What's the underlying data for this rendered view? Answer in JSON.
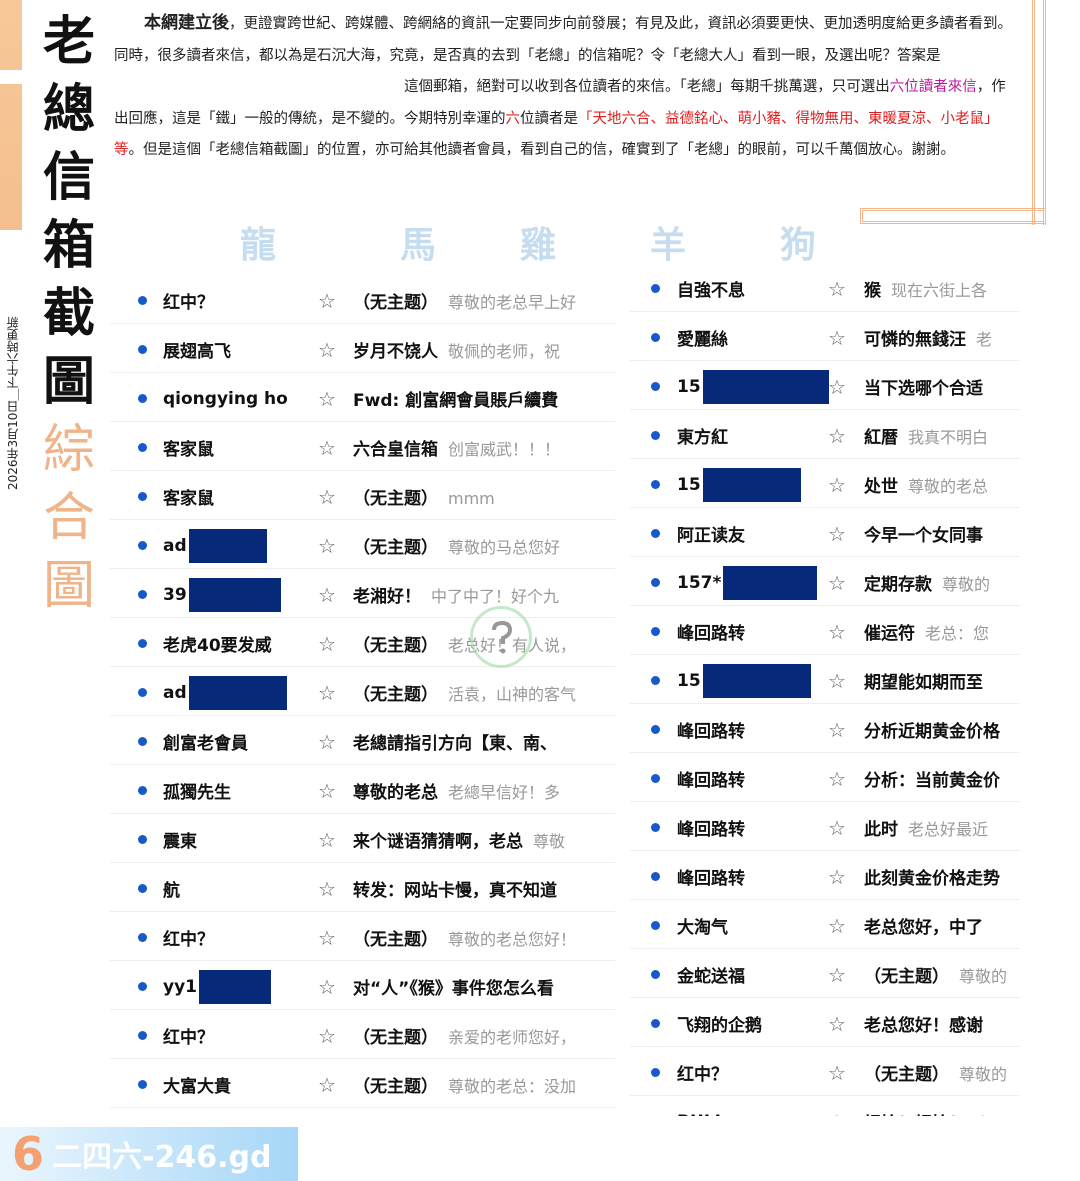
{
  "title": {
    "chars": [
      "老",
      "總",
      "信",
      "箱",
      "截",
      "圖"
    ],
    "sub_chars": [
      "綜",
      "合",
      "圖"
    ]
  },
  "date_note": "2026年3月10日＿下午六時更新",
  "intro": {
    "lead": "本網建立後",
    "p1": "，更證實跨世紀、跨媒體、跨網絡的資訊一定要同步向前發展；有見及此，資訊必須要更快、更加透明度給更多讀者看到。同時，很多讀者來信，都以為是石沉大海，究竟，是否真的去到「老總」的信箱呢？令「老總大人」看到一眼，及選出呢？答案是",
    "p2": "這個郵箱，絕對可以收到各位讀者的來信。「老總」每期千挑萬選，只可選出",
    "hl1": "六位讀者來信",
    "p3": "，作出回應，這是「鐵」一般的傳統，是不變的。今期特別幸運的",
    "hl2": "六",
    "p4": "位讀者是",
    "hl3": "「天地六合、益德銘心、萌小豬、得物無用、東暖夏涼、小老鼠」等",
    "p5": "。但是這個「老總信箱截圖」的位置，亦可給其他讀者會員，看到自己的信，確實到了「老總」的眼前，可以千萬個放心。謝謝。"
  },
  "watermark": [
    "龍",
    "馬",
    "雞",
    "羊",
    "狗"
  ],
  "colors": {
    "dot": "#1859c9",
    "redact": "#062a79",
    "magenta": "#c0189c",
    "red": "#e02020",
    "accent_orange": "#f2b68a"
  },
  "left_emails": [
    {
      "sender": "红中？",
      "subject": "（无主题）",
      "preview": "尊敬的老总早上好"
    },
    {
      "sender": "展翅高飞",
      "subject": "岁月不饶人",
      "preview": "敬佩的老师，祝"
    },
    {
      "sender": "qiongying ho",
      "subject": "Fwd: 創富網會員賬戶續費",
      "preview": ""
    },
    {
      "sender": "客家鼠",
      "subject": "六合皇信箱",
      "preview": "创富威武！！！"
    },
    {
      "sender": "客家鼠",
      "subject": "（无主题）",
      "preview": "mmm"
    },
    {
      "sender": "ad",
      "subject": "（无主题）",
      "preview": "尊敬的马总您好",
      "redact": 78
    },
    {
      "sender": "39",
      "subject": "老湘好！",
      "preview": "中了中了！好个九",
      "redact": 92
    },
    {
      "sender": "老虎40要发威",
      "subject": "（无主题）",
      "preview": "老总好！有人说，"
    },
    {
      "sender": "ad",
      "subject": "（无主题）",
      "preview": "活袁，山神的客气",
      "redact": 98
    },
    {
      "sender": "創富老會員",
      "subject": "老總請指引方向【東、南、",
      "preview": ""
    },
    {
      "sender": "孤獨先生",
      "subject": "尊敬的老总",
      "preview": "老總早信好！多"
    },
    {
      "sender": "震東",
      "subject": "来个谜语猜猜啊，老总",
      "preview": "尊敬"
    },
    {
      "sender": "航",
      "subject": "转发：网站卡慢，真不知道",
      "preview": ""
    },
    {
      "sender": "红中？",
      "subject": "（无主题）",
      "preview": "尊敬的老总您好！"
    },
    {
      "sender": "yy1",
      "subject": "对“人”《猴》事件您怎么看",
      "preview": "",
      "redact": 72
    },
    {
      "sender": "红中？",
      "subject": "（无主题）",
      "preview": "亲爱的老师您好，"
    },
    {
      "sender": "大富大貴",
      "subject": "（无主题）",
      "preview": "尊敬的老总：没加"
    }
  ],
  "right_emails": [
    {
      "sender": "自強不息",
      "subject": "猴",
      "preview": "现在六街上各"
    },
    {
      "sender": "愛麗絲",
      "subject": "可憐的無錢汪",
      "preview": "老"
    },
    {
      "sender": "15",
      "subject": "当下选哪个合适",
      "preview": "",
      "redact": 126
    },
    {
      "sender": "東方紅",
      "subject": "紅暦",
      "preview": "我真不明白"
    },
    {
      "sender": "15",
      "subject": "处世",
      "preview": "尊敬的老总",
      "redact": 98
    },
    {
      "sender": "阿正读友",
      "subject": "今早一个女同事",
      "preview": ""
    },
    {
      "sender": "157*",
      "subject": "定期存款",
      "preview": "尊敬的",
      "redact": 94
    },
    {
      "sender": "峰回路转",
      "subject": "催运符",
      "preview": "老总：您"
    },
    {
      "sender": "15",
      "subject": "期望能如期而至",
      "preview": "",
      "redact": 108
    },
    {
      "sender": "峰回路转",
      "subject": "分析近期黄金价格",
      "preview": ""
    },
    {
      "sender": "峰回路转",
      "subject": "分析：当前黄金价",
      "preview": ""
    },
    {
      "sender": "峰回路转",
      "subject": "此时",
      "preview": "老总好最近"
    },
    {
      "sender": "峰回路转",
      "subject": "此刻黄金价格走势",
      "preview": ""
    },
    {
      "sender": "大淘气",
      "subject": "老总您好，中了",
      "preview": ""
    },
    {
      "sender": "金蛇送福",
      "subject": "（无主题）",
      "preview": "尊敬的"
    },
    {
      "sender": "飞翔的企鹅",
      "subject": "老总您好！感谢",
      "preview": ""
    },
    {
      "sender": "红中？",
      "subject": "（无主题）",
      "preview": "尊敬的"
    },
    {
      "sender": "BULL",
      "subject": "拐拎！拐拎！",
      "preview": "老"
    }
  ],
  "footer_logo": {
    "glyph": "6",
    "text": "二四六-246.gd"
  }
}
